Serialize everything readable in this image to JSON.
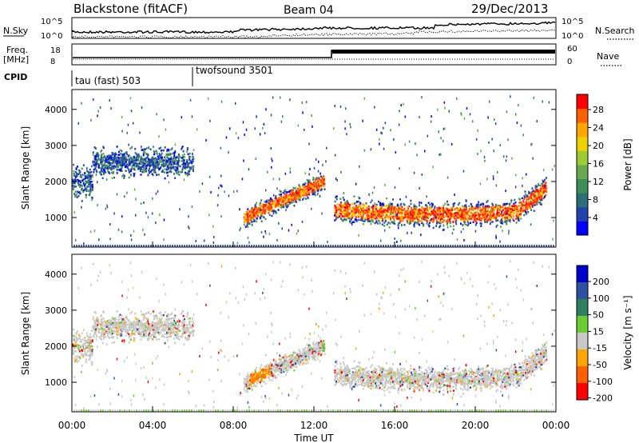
{
  "header": {
    "title": "Blackstone (fitACF)",
    "beam": "Beam 04",
    "date": "29/Dec/2013"
  },
  "top_panels": {
    "nsky_label": "N.Sky",
    "nsky_ticks": [
      "10^5",
      "10^0"
    ],
    "nsearch_label": "N.Search",
    "nsearch_ticks": [
      "10^5",
      "10^0"
    ],
    "freq_label": "Freq.",
    "freq_unit": "[MHz]",
    "freq_ticks": [
      "18",
      "8"
    ],
    "nave_label": "Nave",
    "nave_ticks": [
      "60",
      "0"
    ],
    "cpid_label": "CPID",
    "cpid_segments": [
      {
        "name": "tau (fast) 503",
        "start_hr": 0
      },
      {
        "name": "twofsound 3501",
        "start_hr": 6
      }
    ]
  },
  "chart_data": [
    {
      "type": "heatmap",
      "panel": "power",
      "ylabel": "Slant Range [km]",
      "yticks": [
        "4000",
        "3000",
        "2000",
        "1000"
      ],
      "ylim": [
        180,
        4550
      ],
      "xlim": [
        0,
        24
      ],
      "colorbar_label": "Power [dB]",
      "colorbar_ticks": [
        "28",
        "24",
        "20",
        "16",
        "12",
        "8",
        "4"
      ],
      "colorbar_colors": [
        "#0000ff",
        "#2244aa",
        "#2e6e78",
        "#3e8e5a",
        "#6aa84f",
        "#9ccc33",
        "#f0d000",
        "#ffa500",
        "#ff6000",
        "#ff0000"
      ],
      "echo_bands_hr_km": [
        {
          "start": 0.0,
          "end": 1.0,
          "center": 2000,
          "width": 600
        },
        {
          "start": 1.0,
          "end": 6.0,
          "center": 2550,
          "width": 500
        },
        {
          "start": 8.5,
          "end": 12.5,
          "center": 1650,
          "width": 800
        },
        {
          "start": 13.0,
          "end": 23.5,
          "center": 1250,
          "width": 450
        }
      ]
    },
    {
      "type": "heatmap",
      "panel": "velocity",
      "ylabel": "Slant Range [km]",
      "yticks": [
        "4000",
        "3000",
        "2000",
        "1000"
      ],
      "ylim": [
        180,
        4550
      ],
      "xlim": [
        0,
        24
      ],
      "xlabel": "Time UT",
      "xticks": [
        "00:00",
        "04:00",
        "08:00",
        "12:00",
        "16:00",
        "20:00",
        "00:00"
      ],
      "colorbar_label": "Velocity [m s⁻¹]",
      "colorbar_ticks": [
        "200",
        "100",
        "50",
        "15",
        "-15",
        "-50",
        "-100",
        "-200"
      ],
      "colorbar_colors": [
        "#0000cc",
        "#3050a0",
        "#2e8060",
        "#6ccc33",
        "#c8c8c8",
        "#ffa500",
        "#ff6000",
        "#ff0000"
      ]
    }
  ]
}
